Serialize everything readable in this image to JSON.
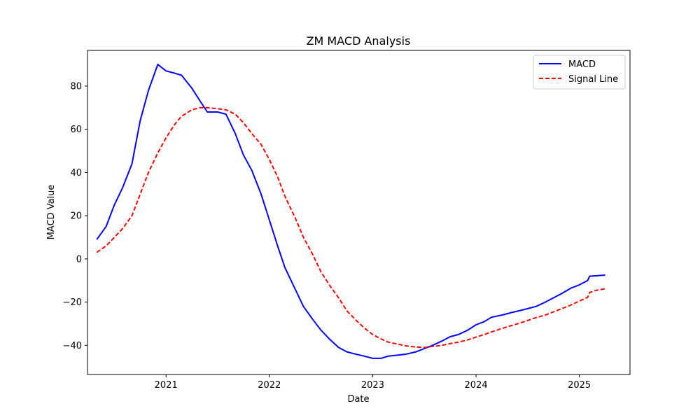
{
  "chart_data": {
    "type": "line",
    "title": "ZM MACD Analysis",
    "xlabel": "Date",
    "ylabel": "MACD Value",
    "xlim": [
      2020.24,
      2025.49
    ],
    "ylim": [
      -53.5,
      96.5
    ],
    "x_ticks": [
      2021,
      2022,
      2023,
      2024,
      2025
    ],
    "x_tick_labels": [
      "2021",
      "2022",
      "2023",
      "2024",
      "2025"
    ],
    "y_ticks": [
      -40,
      -20,
      0,
      20,
      40,
      60,
      80
    ],
    "y_tick_labels": [
      "−40",
      "−20",
      "0",
      "20",
      "40",
      "60",
      "80"
    ],
    "grid": false,
    "legend_position": "top-right",
    "series": [
      {
        "name": "MACD",
        "color": "#0000ff",
        "style": "solid",
        "x": [
          2020.33,
          2020.42,
          2020.5,
          2020.58,
          2020.67,
          2020.75,
          2020.83,
          2020.92,
          2021.0,
          2021.08,
          2021.15,
          2021.25,
          2021.33,
          2021.4,
          2021.5,
          2021.58,
          2021.67,
          2021.75,
          2021.83,
          2021.92,
          2022.0,
          2022.08,
          2022.15,
          2022.25,
          2022.33,
          2022.42,
          2022.5,
          2022.58,
          2022.67,
          2022.75,
          2022.83,
          2022.92,
          2023.0,
          2023.08,
          2023.15,
          2023.25,
          2023.33,
          2023.42,
          2023.5,
          2023.58,
          2023.67,
          2023.75,
          2023.83,
          2023.92,
          2024.0,
          2024.08,
          2024.15,
          2024.25,
          2024.33,
          2024.42,
          2024.5,
          2024.58,
          2024.67,
          2024.75,
          2024.83,
          2024.92,
          2025.0,
          2025.08,
          2025.1,
          2025.17,
          2025.25
        ],
        "values": [
          9,
          15,
          25,
          33,
          44,
          64,
          78,
          90,
          87,
          86,
          85,
          79,
          73,
          68,
          68,
          67,
          58,
          48,
          41,
          30,
          18,
          6,
          -4,
          -14,
          -22,
          -28,
          -33,
          -37,
          -41,
          -43,
          -44,
          -45,
          -46,
          -46,
          -45,
          -44.5,
          -44,
          -43,
          -41.5,
          -40,
          -38,
          -36,
          -35,
          -33,
          -30.5,
          -29,
          -27,
          -26,
          -25,
          -24,
          -23,
          -22,
          -20,
          -18,
          -16,
          -13.5,
          -12,
          -10,
          -8,
          -7.8,
          -7.5
        ]
      },
      {
        "name": "Signal Line",
        "color": "#ff0000",
        "style": "dashed",
        "x": [
          2020.33,
          2020.42,
          2020.5,
          2020.58,
          2020.67,
          2020.75,
          2020.83,
          2020.92,
          2021.0,
          2021.08,
          2021.15,
          2021.25,
          2021.33,
          2021.4,
          2021.5,
          2021.58,
          2021.67,
          2021.75,
          2021.83,
          2021.92,
          2022.0,
          2022.08,
          2022.15,
          2022.25,
          2022.33,
          2022.42,
          2022.5,
          2022.58,
          2022.67,
          2022.75,
          2022.83,
          2022.92,
          2023.0,
          2023.08,
          2023.15,
          2023.25,
          2023.33,
          2023.42,
          2023.5,
          2023.58,
          2023.67,
          2023.75,
          2023.83,
          2023.92,
          2024.0,
          2024.08,
          2024.15,
          2024.25,
          2024.33,
          2024.42,
          2024.5,
          2024.58,
          2024.67,
          2024.75,
          2024.83,
          2024.92,
          2025.0,
          2025.08,
          2025.1,
          2025.17,
          2025.25
        ],
        "values": [
          3,
          6,
          10,
          14,
          20,
          30,
          40,
          49,
          56,
          62,
          66,
          69,
          70,
          70,
          69.5,
          69,
          67,
          63,
          58,
          53,
          46,
          38,
          29,
          19,
          10,
          2,
          -6,
          -12,
          -18,
          -24,
          -28,
          -32,
          -35,
          -37,
          -38.5,
          -39.5,
          -40.3,
          -40.8,
          -41,
          -40.5,
          -40,
          -39.2,
          -38.5,
          -37.5,
          -36.2,
          -35,
          -33.8,
          -32.2,
          -31,
          -29.8,
          -28.5,
          -27.2,
          -26,
          -24.5,
          -23,
          -21.3,
          -19.5,
          -17.8,
          -15.5,
          -14.5,
          -13.8
        ]
      }
    ]
  }
}
